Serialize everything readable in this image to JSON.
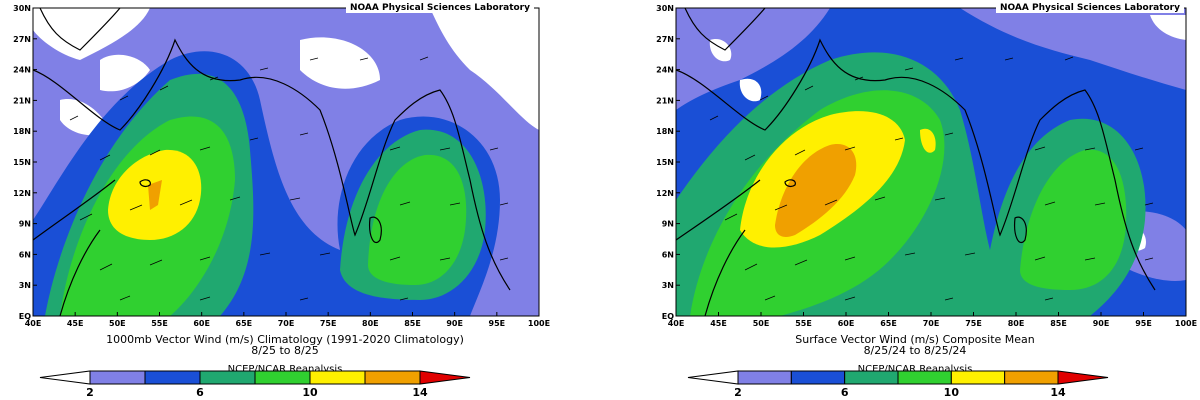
{
  "panels": [
    {
      "credit": "NOAA Physical Sciences Laboratory",
      "caption_line1": "1000mb Vector Wind (m/s) Climatology (1991-2020 Climatology)",
      "caption_line2": "8/25  to 8/25",
      "reanalysis_label": "NCEP/NCAR Reanalysis"
    },
    {
      "credit": "NOAA Physical Sciences Laboratory",
      "caption_line1": "Surface Vector Wind (m/s) Composite Mean",
      "caption_line2": "8/25/24  to 8/25/24",
      "reanalysis_label": "NCEP/NCAR Reanalysis"
    }
  ],
  "axes": {
    "lat_labels": [
      "EQ",
      "3N",
      "6N",
      "9N",
      "12N",
      "15N",
      "18N",
      "21N",
      "24N",
      "27N",
      "30N"
    ],
    "lon_labels": [
      "40E",
      "45E",
      "50E",
      "55E",
      "60E",
      "65E",
      "70E",
      "75E",
      "80E",
      "85E",
      "90E",
      "95E",
      "100E"
    ]
  },
  "legend": {
    "labels": [
      "2",
      "6",
      "10",
      "14"
    ],
    "colors": [
      "#ffffff",
      "#8080e6",
      "#1a4fd6",
      "#20a870",
      "#30d030",
      "#fff000",
      "#f0a000",
      "#e00000"
    ]
  },
  "colors": {
    "white": "#ffffff",
    "light_blue": "#8080e6",
    "blue": "#1a4fd6",
    "teal": "#20a870",
    "green": "#30d030",
    "yellow": "#fff000",
    "orange": "#f0a000"
  }
}
